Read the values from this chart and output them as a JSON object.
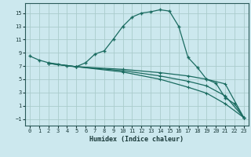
{
  "xlabel": "Humidex (Indice chaleur)",
  "bg_color": "#cce8ee",
  "grid_color": "#aacccc",
  "line_color": "#1a6b60",
  "xlim": [
    -0.5,
    23.5
  ],
  "ylim": [
    -2.0,
    16.5
  ],
  "xticks": [
    0,
    1,
    2,
    3,
    4,
    5,
    6,
    7,
    8,
    9,
    10,
    11,
    12,
    13,
    14,
    15,
    16,
    17,
    18,
    19,
    20,
    21,
    22,
    23
  ],
  "yticks": [
    -1,
    1,
    3,
    5,
    7,
    9,
    11,
    13,
    15
  ],
  "line1_x": [
    0,
    1,
    2,
    3,
    4,
    5,
    6,
    7,
    8,
    9,
    10,
    11,
    12,
    13,
    14,
    15,
    16,
    17,
    18,
    19,
    20,
    21,
    22,
    23
  ],
  "line1_y": [
    8.5,
    7.9,
    7.5,
    7.3,
    7.0,
    6.9,
    7.5,
    8.8,
    9.3,
    11.1,
    13.0,
    14.4,
    15.0,
    15.2,
    15.5,
    15.3,
    13.0,
    8.3,
    6.8,
    5.0,
    4.4,
    2.2,
    1.3,
    -0.8
  ],
  "line2_x": [
    2,
    5,
    10,
    14,
    17,
    19,
    21,
    23
  ],
  "line2_y": [
    7.4,
    6.9,
    6.5,
    6.0,
    5.5,
    5.0,
    4.3,
    -0.8
  ],
  "line3_x": [
    2,
    5,
    10,
    14,
    17,
    19,
    21,
    23
  ],
  "line3_y": [
    7.4,
    6.9,
    6.3,
    5.5,
    4.7,
    4.0,
    2.5,
    -0.8
  ],
  "line4_x": [
    2,
    5,
    10,
    14,
    17,
    19,
    21,
    23
  ],
  "line4_y": [
    7.4,
    6.9,
    6.1,
    5.0,
    3.8,
    2.9,
    1.3,
    -0.8
  ]
}
